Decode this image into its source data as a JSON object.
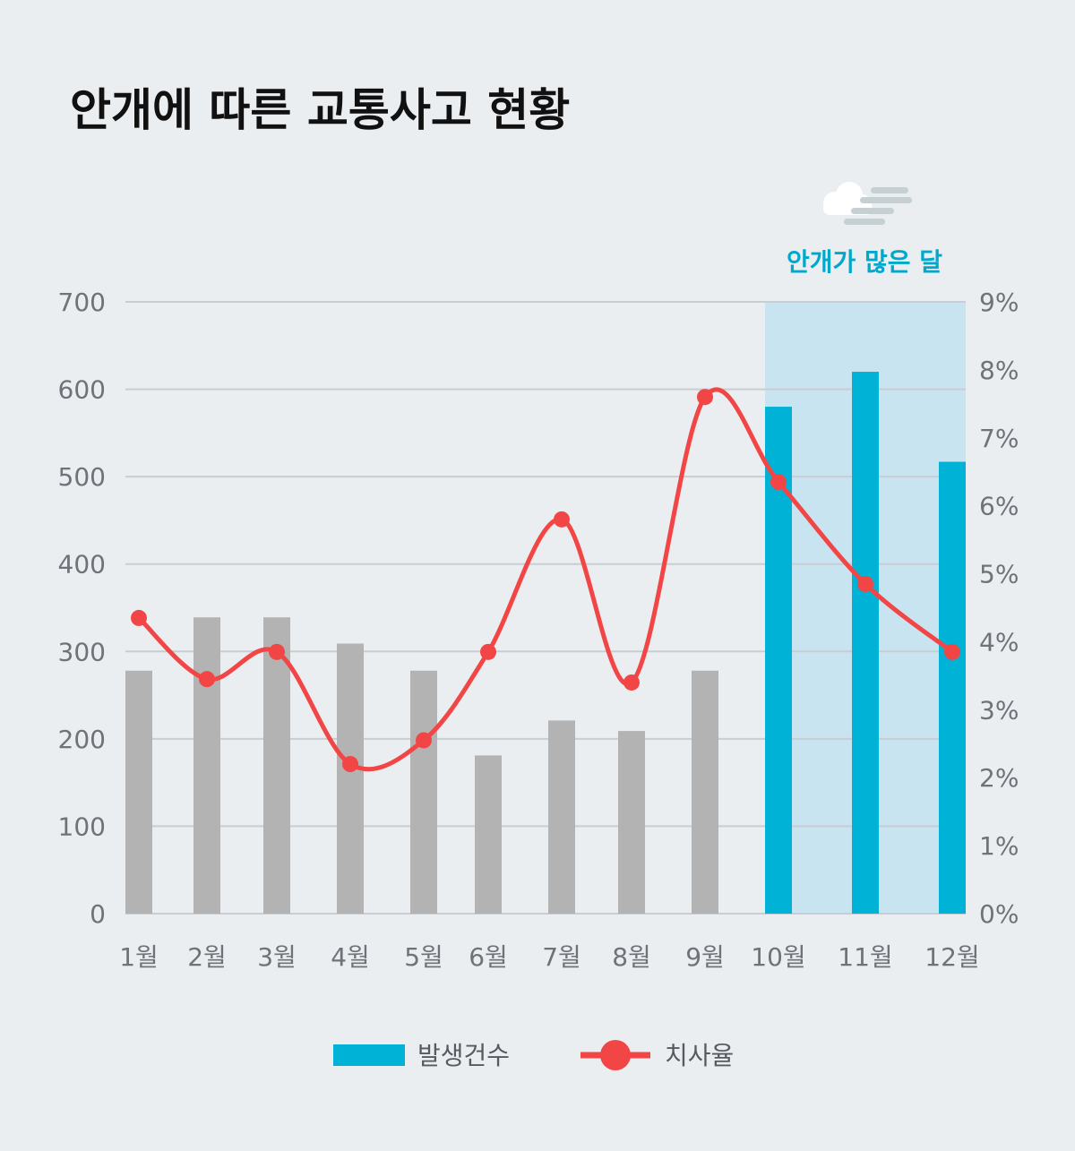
{
  "chart_data": {
    "type": "bar",
    "title": "안개에 따른 교통사고 현황",
    "categories": [
      "1월",
      "2월",
      "3월",
      "4월",
      "5월",
      "6월",
      "7월",
      "8월",
      "9월",
      "10월",
      "11월",
      "12월"
    ],
    "series": [
      {
        "name": "발생건수",
        "type": "bar",
        "axis": "left",
        "values": [
          278,
          339,
          339,
          309,
          278,
          181,
          221,
          209,
          278,
          580,
          620,
          517
        ]
      },
      {
        "name": "치사율",
        "type": "line",
        "axis": "right",
        "values": [
          4.35,
          3.45,
          3.85,
          2.2,
          2.55,
          3.85,
          5.8,
          3.4,
          7.6,
          6.35,
          4.85,
          3.85
        ]
      }
    ],
    "y_left": {
      "min": 0,
      "max": 700,
      "ticks": [
        0,
        100,
        200,
        300,
        400,
        500,
        600,
        700
      ],
      "tick_labels": [
        "0",
        "100",
        "200",
        "300",
        "400",
        "500",
        "600",
        "700"
      ]
    },
    "y_right": {
      "min": 0,
      "max": 9,
      "ticks": [
        0,
        1,
        2,
        3,
        4,
        5,
        6,
        7,
        8,
        9
      ],
      "tick_labels": [
        "0%",
        "1%",
        "2%",
        "3%",
        "4%",
        "5%",
        "6%",
        "7%",
        "8%",
        "9%"
      ]
    },
    "highlight": {
      "label": "안개가 많은 달",
      "categories": [
        "10월",
        "11월",
        "12월"
      ],
      "icon": "fog-cloud-icon"
    },
    "grid": true,
    "legend_position": "bottom",
    "colors": {
      "bar_default": "#b3b3b3",
      "bar_highlight": "#00b3d6",
      "line": "#f24545",
      "highlight_bg": "#c8e4f1",
      "highlight_text": "#00a9cc",
      "grid": "#c9cdd1"
    }
  }
}
